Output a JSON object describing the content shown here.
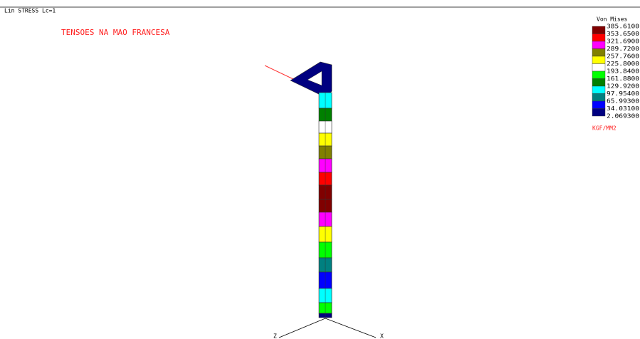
{
  "header": {
    "label": "Lin STRESS Lc=1"
  },
  "title": "TENSOES NA MAO FRANCESA",
  "legend": {
    "title": "Von Mises",
    "labels": [
      "385.6100",
      "353.6500",
      "321.6900",
      "289.7200",
      "257.7600",
      "225.8000",
      "193.8400",
      "161.8800",
      "129.9200",
      "97.95400",
      "65.99300",
      "34.03100",
      "2.069300"
    ],
    "colors": [
      "#800000",
      "#ff0000",
      "#ff00ff",
      "#808000",
      "#ffff00",
      "#ffffff",
      "#00ff00",
      "#008000",
      "#00ffff",
      "#008080",
      "#0000ff",
      "#000080"
    ],
    "unit": "KGF/MM2"
  },
  "axes": {
    "z": "Z",
    "x": "X"
  }
}
